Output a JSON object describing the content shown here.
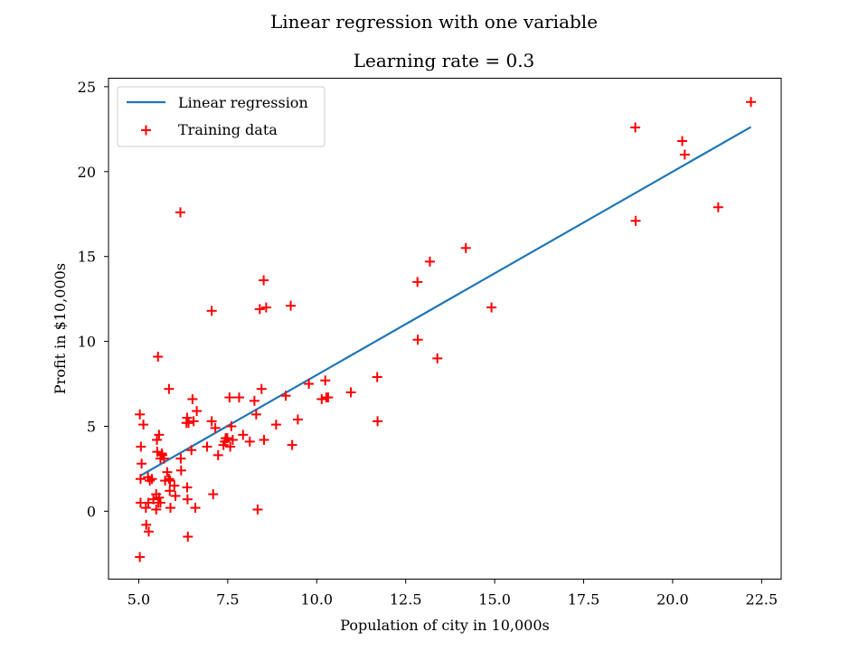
{
  "figure": {
    "suptitle": "Linear regression with one variable"
  },
  "chart_data": {
    "type": "scatter",
    "title": "Learning rate = 0.3",
    "xlabel": "Population of city in 10,000s",
    "ylabel": "Profit in $10,000s",
    "xlim": [
      4.15,
      23.05
    ],
    "ylim": [
      -4.0,
      25.5
    ],
    "xticks": [
      5.0,
      7.5,
      10.0,
      12.5,
      15.0,
      17.5,
      20.0,
      22.5
    ],
    "xtick_labels": [
      "5.0",
      "7.5",
      "10.0",
      "12.5",
      "15.0",
      "17.5",
      "20.0",
      "22.5"
    ],
    "yticks": [
      0,
      5,
      10,
      15,
      20,
      25
    ],
    "ytick_labels": [
      "0",
      "5",
      "10",
      "15",
      "20",
      "25"
    ],
    "grid": false,
    "legend": {
      "position": "top-left",
      "entries": [
        {
          "label": "Linear regression",
          "marker": "line",
          "color": "#1f77b4"
        },
        {
          "label": "Training data",
          "marker": "plus",
          "color": "#ff0000"
        }
      ]
    },
    "series": [
      {
        "name": "Linear regression",
        "kind": "line",
        "color": "#1f77b4",
        "x": [
          5.03,
          22.2
        ],
        "y": [
          2.07,
          22.63
        ]
      },
      {
        "name": "Training data",
        "kind": "scatter",
        "marker": "+",
        "color": "#ff0000",
        "x": [
          5.03,
          5.06,
          5.08,
          5.13,
          5.2,
          5.21,
          5.28,
          5.31,
          5.27,
          5.03,
          5.05,
          5.05,
          5.41,
          5.49,
          5.49,
          5.55,
          5.57,
          5.61,
          5.66,
          5.71,
          5.74,
          5.8,
          5.85,
          5.87,
          5.89,
          5.88,
          6.0,
          6.03,
          6.18,
          6.19,
          6.34,
          6.36,
          6.36,
          6.37,
          6.4,
          6.48,
          6.51,
          6.54,
          6.59,
          6.63,
          5.57,
          5.61,
          5.65,
          5.51,
          5.52,
          6.38,
          6.92,
          7.05,
          7.09,
          7.15,
          7.23,
          7.38,
          7.42,
          7.44,
          7.49,
          7.55,
          7.57,
          7.6,
          7.64,
          7.82,
          7.93,
          8.12,
          8.25,
          8.3,
          8.34,
          8.4,
          8.45,
          8.51,
          8.52,
          8.58,
          8.86,
          9.13,
          9.27,
          9.31,
          9.47,
          9.78,
          10.14,
          10.24,
          10.27,
          10.32,
          10.96,
          11.7,
          11.71,
          12.83,
          12.84,
          13.18,
          13.39,
          14.19,
          14.91,
          18.95,
          18.96,
          20.27,
          20.34,
          21.28,
          22.2,
          6.17,
          7.05,
          5.54,
          5.85,
          5.26,
          5.37
        ],
        "y": [
          5.7,
          3.8,
          2.8,
          5.1,
          0.2,
          -0.8,
          -1.2,
          1.8,
          0.5,
          -2.7,
          0.5,
          1.9,
          0.7,
          0.1,
          1.0,
          0.5,
          0.8,
          0.5,
          3.3,
          3.1,
          1.8,
          2.3,
          1.9,
          1.2,
          0.2,
          1.8,
          1.5,
          0.9,
          3.1,
          2.4,
          5.2,
          5.5,
          1.4,
          0.7,
          5.2,
          3.6,
          6.6,
          5.3,
          0.2,
          5.9,
          4.5,
          3.1,
          3.4,
          4.2,
          3.5,
          -1.5,
          3.8,
          5.3,
          1.0,
          4.9,
          3.3,
          3.9,
          4.1,
          4.3,
          4.3,
          6.7,
          3.8,
          5.0,
          4.2,
          6.7,
          4.5,
          4.1,
          6.5,
          5.7,
          0.1,
          11.9,
          7.2,
          13.6,
          4.2,
          12.0,
          5.1,
          6.8,
          12.1,
          3.9,
          5.4,
          7.5,
          6.6,
          7.7,
          6.7,
          6.7,
          7.0,
          7.9,
          5.3,
          13.5,
          10.1,
          14.7,
          9.0,
          15.5,
          12.0,
          22.6,
          17.1,
          21.8,
          21.0,
          17.9,
          24.1,
          17.6,
          11.8,
          9.1,
          7.2,
          2.0,
          1.9
        ]
      }
    ]
  }
}
